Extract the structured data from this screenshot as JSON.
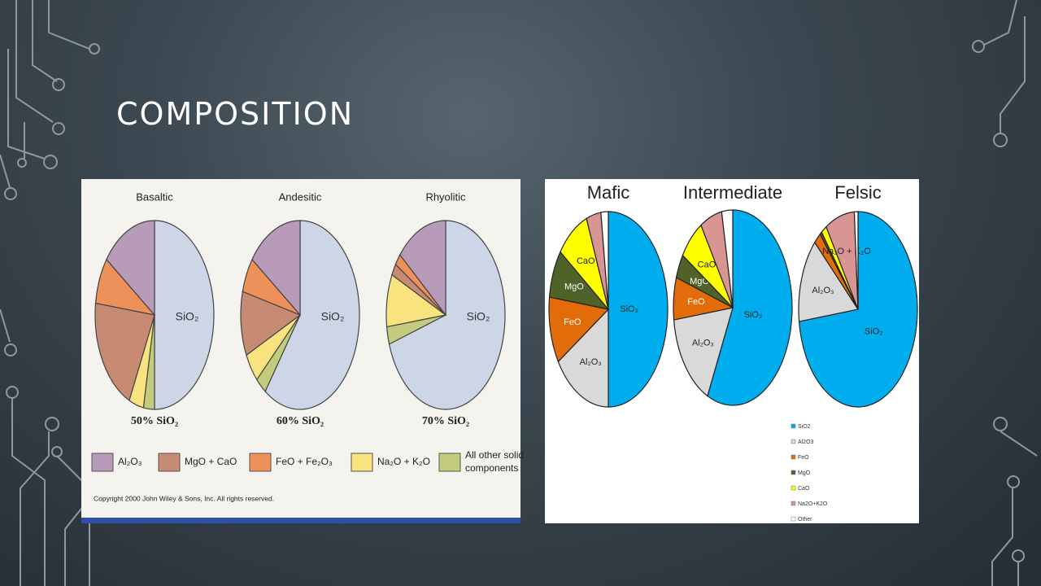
{
  "slide": {
    "title": "COMPOSITION"
  },
  "chart_data": [
    {
      "type": "pie",
      "categories": [
        "SiO₂",
        "Al₂O₃",
        "MgO + CaO",
        "FeO + Fe₂O₃",
        "Na₂O + K₂O",
        "All other solid components"
      ],
      "colors": [
        "#cdd6e7",
        "#b89bb8",
        "#c78b74",
        "#ee9059",
        "#f8e37e",
        "#c2cc7c"
      ],
      "series": [
        {
          "name": "Basaltic",
          "values": [
            50,
            15,
            20,
            8,
            4,
            3
          ],
          "value_labels": [
            "50% SiO₂",
            null,
            null,
            null,
            null,
            null
          ]
        },
        {
          "name": "Andesitic",
          "values": [
            60,
            15,
            11,
            6,
            5,
            3
          ],
          "value_labels": [
            "60% SiO₂",
            null,
            null,
            null,
            null,
            null
          ]
        },
        {
          "name": "Rhyolitic",
          "values": [
            70,
            14,
            2,
            2,
            9,
            3
          ],
          "value_labels": [
            "70% SiO₂",
            null,
            null,
            null,
            null,
            null
          ]
        }
      ],
      "note": "Copyright 2000 John Wiley & Sons, Inc. All rights reserved."
    },
    {
      "type": "pie",
      "categories": [
        "SiO2",
        "Al2O3",
        "FeO",
        "MgO",
        "CaO",
        "Na2O+K2O",
        "Other"
      ],
      "colors": [
        "#00adef",
        "#d9d9d9",
        "#e36c0a",
        "#4f6228",
        "#ffff00",
        "#d99594",
        "#ffffff"
      ],
      "series": [
        {
          "name": "Mafic",
          "values": [
            50,
            16,
            11,
            8,
            9,
            4,
            2
          ],
          "labels": [
            "SiO₂",
            "Al₂O₃",
            "FeO",
            "MgO",
            "CaO",
            null,
            null
          ]
        },
        {
          "name": "Intermediate",
          "values": [
            57,
            16,
            7,
            4,
            7,
            6,
            3
          ],
          "labels": [
            "SiO₂",
            "Al₂O₃",
            "FeO",
            "MgO",
            "CaO",
            null,
            null
          ]
        },
        {
          "name": "Felsic",
          "values": [
            73,
            14,
            2,
            0.5,
            1.5,
            8,
            1
          ],
          "labels": [
            "SiO₂",
            "Al₂O₃",
            null,
            null,
            null,
            "Na₂O + K₂O",
            null
          ]
        }
      ]
    }
  ]
}
